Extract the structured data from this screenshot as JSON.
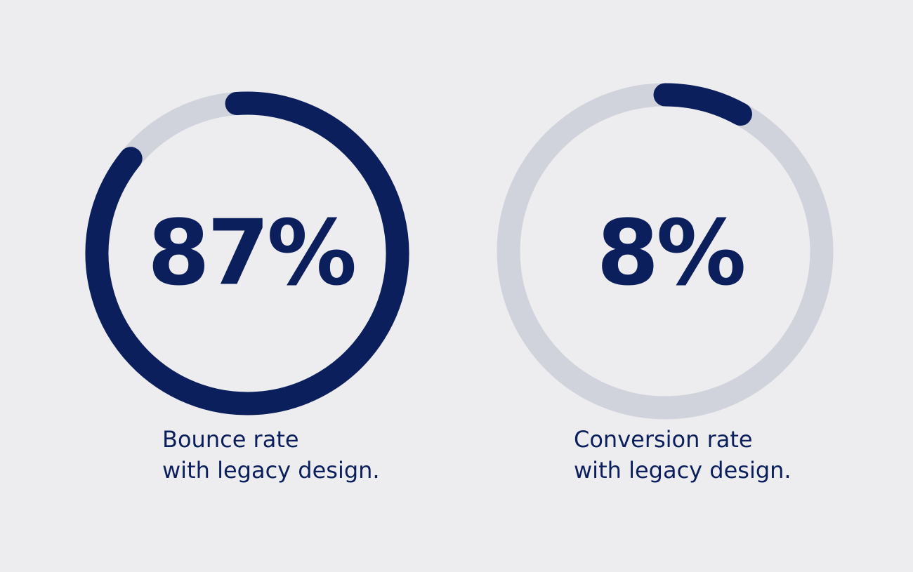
{
  "colors": {
    "background": "#ededef",
    "accent": "#0b1f5c",
    "track": "#d0d3dc"
  },
  "chart_data": [
    {
      "type": "pie",
      "value_percent": 87,
      "label": "87%",
      "caption": [
        "Bounce rate",
        "with legacy design."
      ]
    },
    {
      "type": "pie",
      "value_percent": 8,
      "label": "8%",
      "caption": [
        "Conversion rate",
        "with legacy design."
      ]
    }
  ]
}
